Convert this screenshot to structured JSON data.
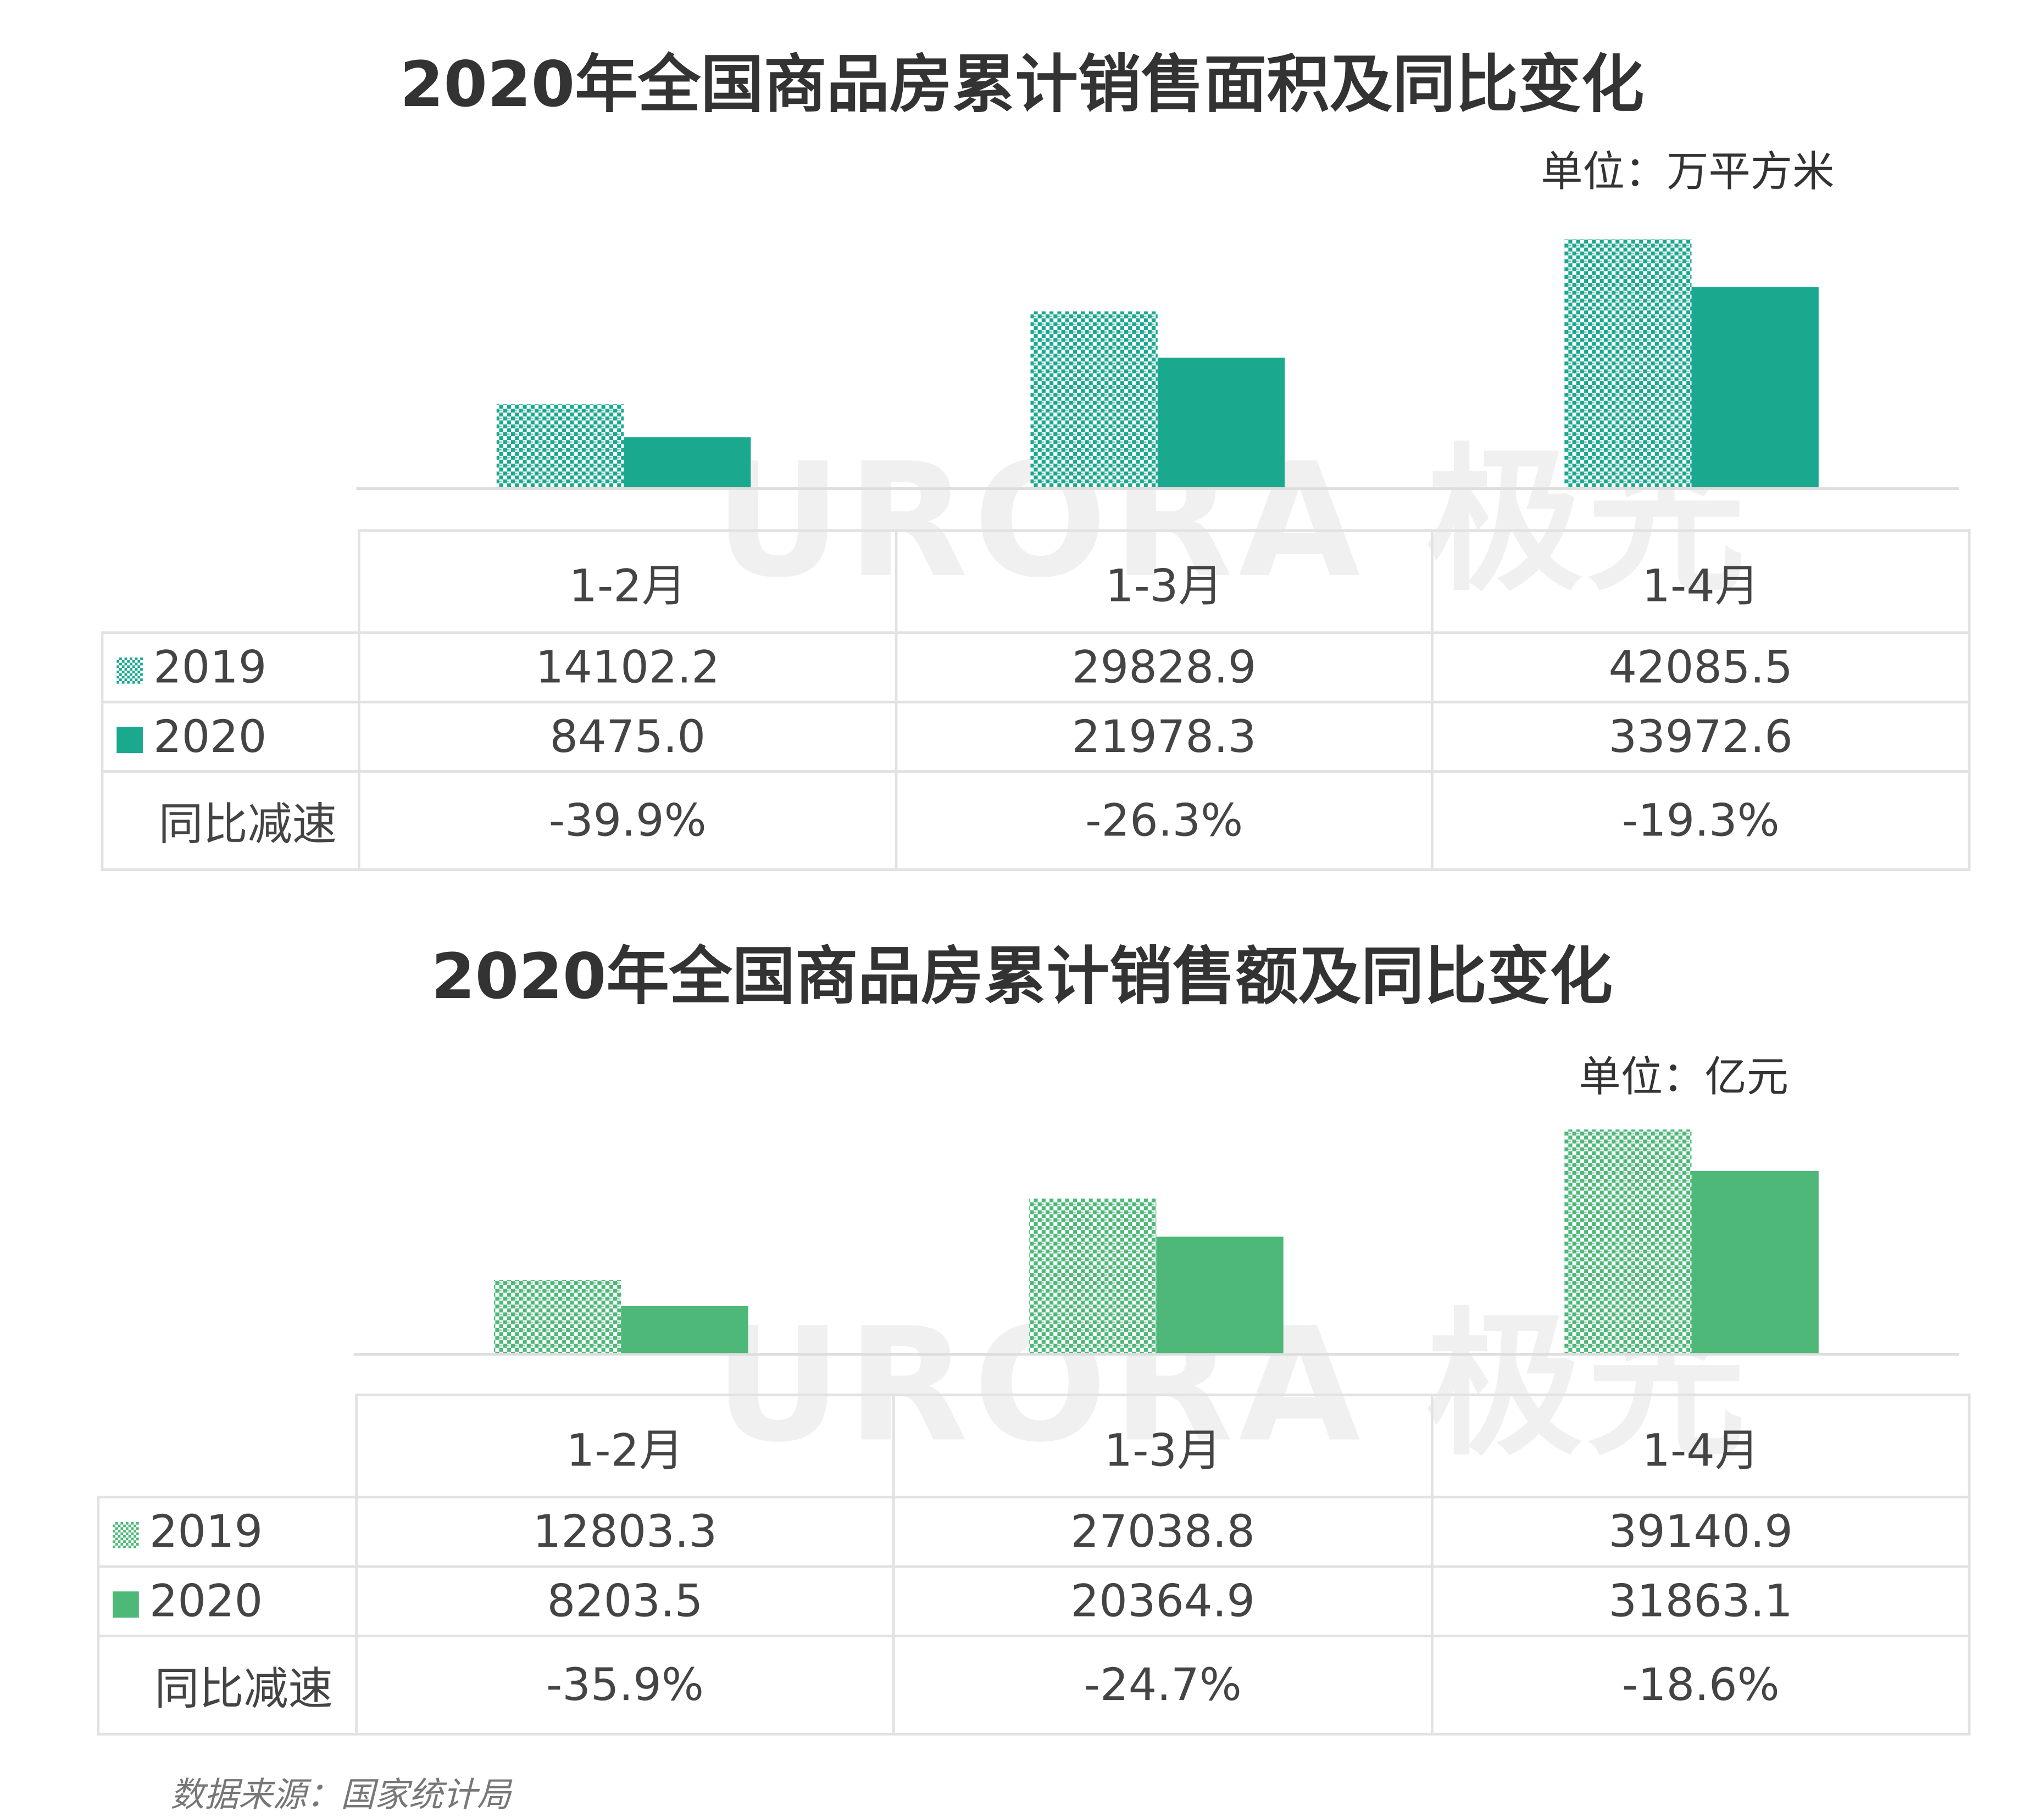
{
  "watermark": "URORA 极光",
  "chart_data": [
    {
      "type": "bar",
      "title": "2020年全国商品房累计销售面积及同比变化",
      "unit": "单位：万平方米",
      "categories": [
        "1-2月",
        "1-3月",
        "1-4月"
      ],
      "series": [
        {
          "name": "2019",
          "values": [
            14102.2,
            29828.9,
            42085.5
          ],
          "color": "#1aa88f",
          "pattern": "checker"
        },
        {
          "name": "2020",
          "values": [
            8475.0,
            21978.3,
            33972.6
          ],
          "color": "#1aa88f",
          "pattern": "solid"
        }
      ],
      "table": {
        "rows": [
          {
            "label": "2019",
            "cells": [
              "14102.2",
              "29828.9",
              "42085.5"
            ]
          },
          {
            "label": "2020",
            "cells": [
              "8475.0",
              "21978.3",
              "33972.6"
            ]
          },
          {
            "label": "同比减速",
            "cells": [
              "-39.9%",
              "-26.3%",
              "-19.3%"
            ]
          }
        ]
      },
      "ylim": [
        0,
        50000
      ],
      "grid": false
    },
    {
      "type": "bar",
      "title": "2020年全国商品房累计销售额及同比变化",
      "unit": "单位：亿元",
      "categories": [
        "1-2月",
        "1-3月",
        "1-4月"
      ],
      "series": [
        {
          "name": "2019",
          "values": [
            12803.3,
            27038.8,
            39140.9
          ],
          "color": "#4db878",
          "pattern": "checker"
        },
        {
          "name": "2020",
          "values": [
            8203.5,
            20364.9,
            31863.1
          ],
          "color": "#4db878",
          "pattern": "solid"
        }
      ],
      "table": {
        "rows": [
          {
            "label": "2019",
            "cells": [
              "12803.3",
              "27038.8",
              "39140.9"
            ]
          },
          {
            "label": "2020",
            "cells": [
              "8203.5",
              "20364.9",
              "31863.1"
            ]
          },
          {
            "label": "同比减速",
            "cells": [
              "-35.9%",
              "-24.7%",
              "-18.6%"
            ]
          }
        ]
      },
      "ylim": [
        0,
        50000
      ],
      "grid": false
    }
  ],
  "source": "数据来源：国家统计局"
}
